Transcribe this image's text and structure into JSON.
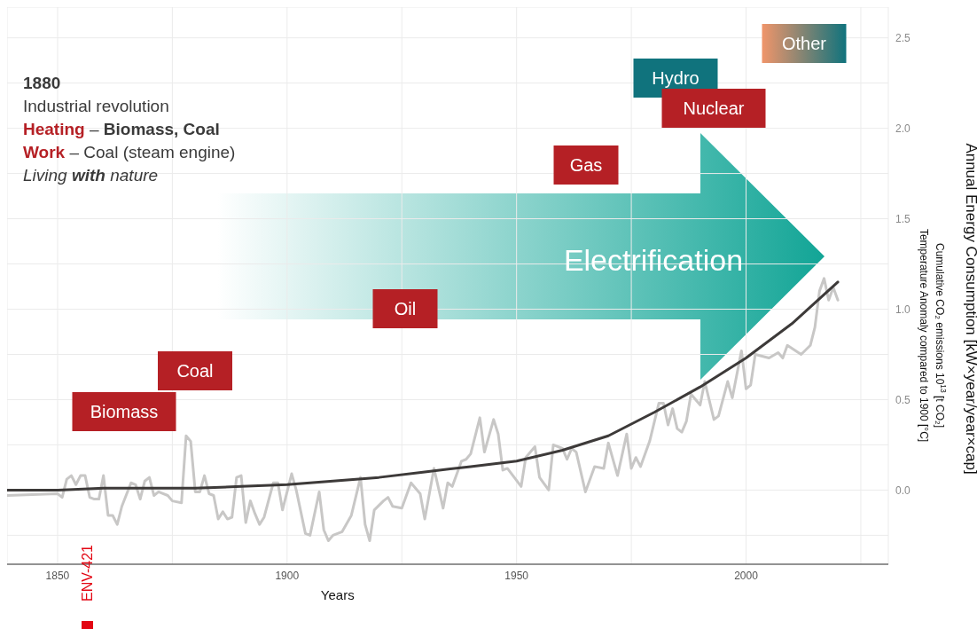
{
  "chart_data": {
    "type": "line",
    "xlabel": "Years",
    "ylabel": "Annual Energy Consumption [kW×year/year×cap]",
    "xlim": [
      1839,
      2031
    ],
    "xticks": [
      1850,
      {
        "value": 1875,
        "label": null
      },
      1900,
      {
        "value": 1925,
        "label": null
      },
      1950,
      {
        "value": 1975,
        "label": null
      },
      2000,
      {
        "value": 2025,
        "label": null
      }
    ],
    "ylim": [
      -0.41,
      2.67
    ],
    "yticks": [
      {
        "value": -0.25,
        "label": null
      },
      {
        "value": 0,
        "label": "0.0"
      },
      {
        "value": 0.25,
        "label": null
      },
      {
        "value": 0.5,
        "label": "0.5"
      },
      {
        "value": 0.75,
        "label": null
      },
      {
        "value": 1,
        "label": "1.0"
      },
      {
        "value": 1.25,
        "label": null
      },
      {
        "value": 1.5,
        "label": "1.5"
      },
      {
        "value": 1.75,
        "label": null
      },
      {
        "value": 2,
        "label": "2.0"
      },
      {
        "value": 2.25,
        "label": null
      },
      {
        "value": 2.5,
        "label": "2.5"
      }
    ],
    "grid": true,
    "series": [
      {
        "color": "#c8c7c6",
        "x": [
          1839,
          1850,
          1851,
          1852,
          1853,
          1854,
          1855,
          1856,
          1857,
          1858,
          1859,
          1860,
          1861,
          1862,
          1863,
          1864,
          1866,
          1867,
          1868,
          1869,
          1870,
          1871,
          1872,
          1874,
          1875,
          1877,
          1878,
          1879,
          1880,
          1881,
          1882,
          1883,
          1884,
          1885,
          1886,
          1887,
          1888,
          1889,
          1890,
          1891,
          1892,
          1893,
          1894,
          1895,
          1897,
          1898,
          1899,
          1901,
          1902,
          1904,
          1905,
          1907,
          1908,
          1909,
          1910,
          1912,
          1914,
          1916,
          1917,
          1918,
          1919,
          1921,
          1922,
          1923,
          1925,
          1927,
          1929,
          1930,
          1932,
          1934,
          1935,
          1936,
          1938,
          1939,
          1940,
          1942,
          1943,
          1945,
          1946,
          1947,
          1948,
          1951,
          1952,
          1954,
          1955,
          1957,
          1958,
          1960,
          1961,
          1962,
          1963,
          1965,
          1967,
          1969,
          1970,
          1972,
          1974,
          1975,
          1976,
          1977,
          1979,
          1981,
          1982,
          1983,
          1984,
          1985,
          1986,
          1987,
          1988,
          1990,
          1991,
          1993,
          1994,
          1996,
          1997,
          1999,
          2000,
          2001,
          2002,
          2005,
          2007,
          2008,
          2009,
          2012,
          2014,
          2015,
          2016,
          2017,
          2018,
          2019,
          2020
        ],
        "values": [
          -0.03,
          -0.02,
          -0.04,
          0.06,
          0.08,
          0.03,
          0.08,
          0.08,
          -0.04,
          -0.05,
          -0.05,
          0.08,
          -0.14,
          -0.14,
          -0.19,
          -0.09,
          0.04,
          0.03,
          -0.05,
          0.05,
          0.07,
          -0.03,
          -0.01,
          -0.03,
          -0.06,
          -0.07,
          0.3,
          0.27,
          -0.01,
          -0.01,
          0.08,
          -0.02,
          -0.03,
          -0.16,
          -0.12,
          -0.16,
          -0.15,
          0.07,
          0.08,
          -0.18,
          -0.06,
          -0.13,
          -0.19,
          -0.15,
          0.04,
          0.04,
          -0.11,
          0.09,
          0.0,
          -0.24,
          -0.25,
          -0.01,
          -0.22,
          -0.28,
          -0.25,
          -0.23,
          -0.14,
          0.07,
          -0.19,
          -0.28,
          -0.11,
          -0.06,
          -0.04,
          -0.09,
          -0.1,
          0.04,
          -0.02,
          -0.16,
          0.12,
          -0.1,
          0.04,
          0.02,
          0.16,
          0.17,
          0.2,
          0.4,
          0.21,
          0.39,
          0.31,
          0.11,
          0.12,
          0.02,
          0.18,
          0.24,
          0.07,
          0.0,
          0.25,
          0.23,
          0.17,
          0.23,
          0.21,
          -0.01,
          0.13,
          0.12,
          0.26,
          0.08,
          0.31,
          0.12,
          0.18,
          0.13,
          0.27,
          0.48,
          0.48,
          0.36,
          0.45,
          0.34,
          0.32,
          0.38,
          0.53,
          0.47,
          0.6,
          0.39,
          0.41,
          0.6,
          0.51,
          0.77,
          0.56,
          0.58,
          0.75,
          0.73,
          0.76,
          0.73,
          0.8,
          0.75,
          0.8,
          0.9,
          1.1,
          1.17,
          1.05,
          1.12,
          1.05
        ]
      },
      {
        "color": "#3d3a39",
        "x": [
          1839,
          1850,
          1860,
          1870,
          1880,
          1890,
          1900,
          1910,
          1920,
          1930,
          1940,
          1950,
          1960,
          1970,
          1980,
          1990,
          2000,
          2010,
          2020
        ],
        "values": [
          0.0,
          0.0,
          0.01,
          0.01,
          0.01,
          0.02,
          0.03,
          0.05,
          0.07,
          0.1,
          0.13,
          0.16,
          0.22,
          0.3,
          0.43,
          0.57,
          0.73,
          0.92,
          1.15
        ]
      }
    ],
    "annotations": [
      "Biomass",
      "Coal",
      "Oil",
      "Gas",
      "Hydro",
      "Nuclear",
      "Other",
      "Electrification",
      "1880",
      "Industrial revolution",
      "Heating – Biomass, Coal",
      "Work – Coal (steam engine)",
      "Living with nature",
      "Cumulative CO₂ emissions 10$^{13}$ [t CO₂]",
      "Temperature Anomaly compared to 1900 [°C]",
      "ENV-421"
    ]
  }
}
